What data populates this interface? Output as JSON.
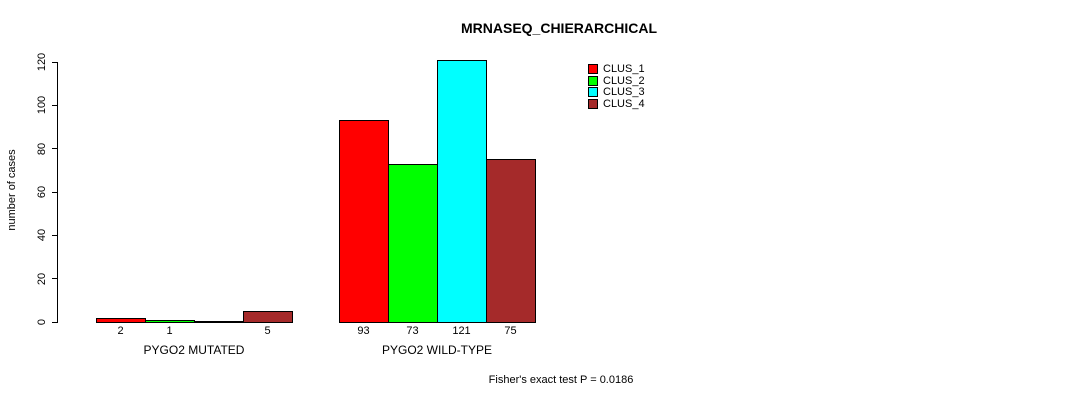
{
  "chart_data": {
    "type": "bar",
    "title": "MRNASEQ_CHIERARCHICAL",
    "ylabel": "number of cases",
    "xlabel": "",
    "ylim": [
      0,
      120
    ],
    "yticks": [
      0,
      20,
      40,
      60,
      80,
      100,
      120
    ],
    "grid": false,
    "legend_position": "top-right",
    "categories": [
      "PYGO2 MUTATED",
      "PYGO2 WILD-TYPE"
    ],
    "series": [
      {
        "name": "CLUS_1",
        "color": "#ff0000",
        "values": [
          2,
          93
        ]
      },
      {
        "name": "CLUS_2",
        "color": "#00ff00",
        "values": [
          1,
          73
        ]
      },
      {
        "name": "CLUS_3",
        "color": "#00ffff",
        "values": [
          0,
          121
        ]
      },
      {
        "name": "CLUS_4",
        "color": "#a52a2a",
        "values": [
          5,
          75
        ]
      }
    ],
    "bar_labels": [
      [
        "2",
        "1",
        "",
        "5"
      ],
      [
        "93",
        "73",
        "121",
        "75"
      ]
    ],
    "annotation": "Fisher's exact test P = 0.0186"
  }
}
